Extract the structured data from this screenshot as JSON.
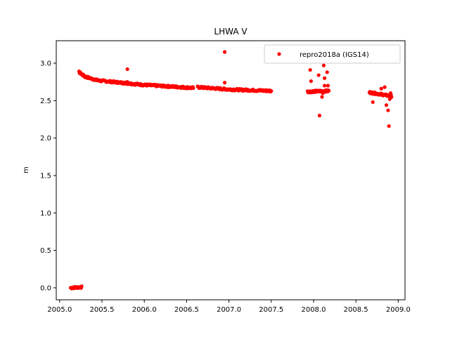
{
  "chart_data": {
    "type": "scatter",
    "title": "LHWA V",
    "xlabel": "",
    "ylabel": "m",
    "xlim": [
      2004.96,
      2009.08
    ],
    "ylim": [
      -0.16,
      3.3
    ],
    "xticks": [
      "2005.0",
      "2005.5",
      "2006.0",
      "2006.5",
      "2007.0",
      "2007.5",
      "2008.0",
      "2008.5",
      "2009.0"
    ],
    "yticks": [
      "0.0",
      "0.5",
      "1.0",
      "1.5",
      "2.0",
      "2.5",
      "3.0"
    ],
    "grid": false,
    "legend_position": "top-right",
    "color": "#ff0000",
    "series": [
      {
        "name": "repro2018a (IGS14)",
        "segments": [
          {
            "x_start": 2005.13,
            "x_end": 2005.26,
            "y_start": 0.0,
            "y_end": 0.01,
            "step": 0.006
          },
          {
            "x_start": 2005.23,
            "x_end": 2005.3,
            "y_start": 2.88,
            "y_end": 2.82,
            "step": 0.005
          },
          {
            "x_start": 2005.3,
            "x_end": 2005.45,
            "y_start": 2.82,
            "y_end": 2.77,
            "step": 0.006
          },
          {
            "x_start": 2005.45,
            "x_end": 2006.0,
            "y_start": 2.77,
            "y_end": 2.71,
            "step": 0.006
          },
          {
            "x_start": 2006.0,
            "x_end": 2006.58,
            "y_start": 2.71,
            "y_end": 2.67,
            "step": 0.006
          },
          {
            "x_start": 2006.63,
            "x_end": 2007.0,
            "y_start": 2.68,
            "y_end": 2.65,
            "step": 0.006
          },
          {
            "x_start": 2007.0,
            "x_end": 2007.5,
            "y_start": 2.65,
            "y_end": 2.63,
            "step": 0.006
          },
          {
            "x_start": 2007.93,
            "x_end": 2008.18,
            "y_start": 2.62,
            "y_end": 2.63,
            "step": 0.005
          },
          {
            "x_start": 2008.66,
            "x_end": 2008.92,
            "y_start": 2.61,
            "y_end": 2.56,
            "step": 0.005
          }
        ],
        "outliers": [
          {
            "x": 2005.8,
            "y": 2.92
          },
          {
            "x": 2005.8,
            "y": 2.75
          },
          {
            "x": 2006.95,
            "y": 3.15
          },
          {
            "x": 2006.95,
            "y": 2.74
          },
          {
            "x": 2007.96,
            "y": 2.91
          },
          {
            "x": 2007.97,
            "y": 2.76
          },
          {
            "x": 2008.06,
            "y": 2.84
          },
          {
            "x": 2008.07,
            "y": 2.3
          },
          {
            "x": 2008.1,
            "y": 2.55
          },
          {
            "x": 2008.12,
            "y": 2.97
          },
          {
            "x": 2008.13,
            "y": 2.8
          },
          {
            "x": 2008.13,
            "y": 2.7
          },
          {
            "x": 2008.16,
            "y": 2.88
          },
          {
            "x": 2008.17,
            "y": 2.7
          },
          {
            "x": 2008.11,
            "y": 2.6
          },
          {
            "x": 2008.7,
            "y": 2.48
          },
          {
            "x": 2008.8,
            "y": 2.66
          },
          {
            "x": 2008.84,
            "y": 2.68
          },
          {
            "x": 2008.86,
            "y": 2.44
          },
          {
            "x": 2008.88,
            "y": 2.37
          },
          {
            "x": 2008.89,
            "y": 2.16
          },
          {
            "x": 2008.91,
            "y": 2.6
          },
          {
            "x": 2008.9,
            "y": 2.52
          }
        ]
      }
    ]
  }
}
